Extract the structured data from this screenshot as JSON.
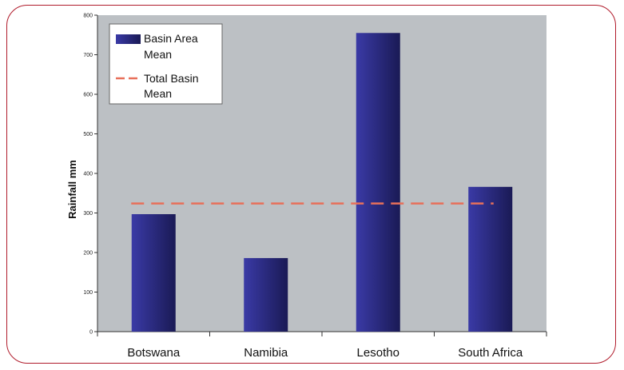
{
  "chart_data": {
    "type": "bar",
    "title": "",
    "xlabel": "",
    "ylabel": "Rainfall mm",
    "categories": [
      "Botswana",
      "Namibia",
      "Lesotho",
      "South Africa"
    ],
    "series": [
      {
        "name": "Basin Area Mean",
        "values": [
          297,
          186,
          755,
          366
        ]
      }
    ],
    "reference_line": {
      "name": "Total Basin Mean",
      "value": 324
    },
    "ylim": [
      0,
      800
    ],
    "yticks": [
      0,
      100,
      200,
      300,
      400,
      500,
      600,
      700,
      800
    ],
    "grid": false,
    "legend_position": "top-left",
    "legend": [
      {
        "label_lines": [
          "Basin Area",
          "Mean"
        ],
        "style": "bar"
      },
      {
        "label_lines": [
          "Total Basin",
          "Mean"
        ],
        "style": "dashed-line"
      }
    ],
    "colors": {
      "plot_background": "#bcc0c4",
      "bar_dark": "#1a1a55",
      "bar_light": "#3a3aa6",
      "reference_line": "#e8705a",
      "frame_border": "#b01a2a"
    }
  }
}
